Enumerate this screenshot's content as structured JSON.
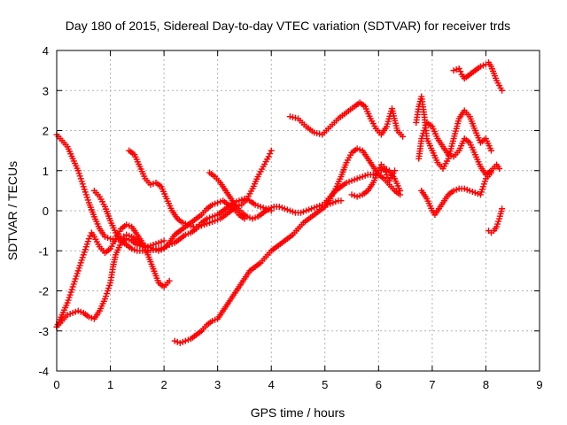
{
  "chart_data": {
    "type": "scatter",
    "title": "Day 180 of 2015, Sidereal Day-to-day VTEC variation (SDTVAR) for receiver trds",
    "xlabel": "GPS time / hours",
    "ylabel": "SDTVAR / TECUs",
    "xlim": [
      0,
      9
    ],
    "ylim": [
      -4,
      4
    ],
    "x_ticks": [
      "0",
      "1",
      "2",
      "3",
      "4",
      "5",
      "6",
      "7",
      "8",
      "9"
    ],
    "y_ticks": [
      "-4",
      "-3",
      "-2",
      "-1",
      "0",
      "1",
      "2",
      "3",
      "4"
    ],
    "grid": true,
    "marker": "plus",
    "color": "#ff0000",
    "series": [
      {
        "x": [
          0.0,
          0.1,
          0.2,
          0.3,
          0.4,
          0.5,
          0.6,
          0.7,
          0.8,
          0.9,
          1.0,
          1.1,
          1.2,
          1.3,
          1.4,
          1.5,
          1.6,
          1.7,
          1.8,
          1.9,
          2.0,
          2.1,
          2.2,
          2.3,
          2.4,
          2.5,
          2.6,
          2.7,
          2.8,
          2.9,
          3.0,
          3.1,
          3.2,
          3.3,
          3.4,
          3.5
        ],
        "y": [
          1.9,
          1.75,
          1.6,
          1.3,
          1.0,
          0.6,
          0.2,
          -0.15,
          -0.45,
          -0.65,
          -0.7,
          -0.72,
          -0.68,
          -0.6,
          -0.65,
          -0.75,
          -0.85,
          -0.9,
          -0.95,
          -1.0,
          -0.95,
          -0.8,
          -0.6,
          -0.5,
          -0.4,
          -0.3,
          -0.2,
          -0.1,
          0.05,
          0.15,
          0.2,
          0.25,
          0.15,
          0.05,
          -0.1,
          -0.2
        ]
      },
      {
        "x": [
          0.0,
          0.1,
          0.2,
          0.3,
          0.4,
          0.5,
          0.6,
          0.65,
          0.7,
          0.8,
          0.9,
          1.0,
          1.1,
          1.2,
          1.3,
          1.4,
          1.5,
          1.6,
          1.7,
          1.8,
          1.9,
          2.0,
          2.1
        ],
        "y": [
          -2.9,
          -2.6,
          -2.3,
          -1.9,
          -1.5,
          -1.1,
          -0.7,
          -0.55,
          -0.65,
          -0.9,
          -1.05,
          -0.95,
          -0.7,
          -0.45,
          -0.35,
          -0.4,
          -0.6,
          -0.8,
          -1.1,
          -1.45,
          -1.8,
          -1.9,
          -1.75
        ]
      },
      {
        "x": [
          0.0,
          0.1,
          0.2,
          0.3,
          0.4,
          0.5,
          0.6,
          0.7,
          0.8,
          0.9,
          1.0,
          1.05,
          1.1,
          1.2,
          1.3,
          1.4,
          1.5,
          1.6,
          1.7,
          1.8,
          1.9,
          2.0
        ],
        "y": [
          -2.9,
          -2.75,
          -2.6,
          -2.55,
          -2.5,
          -2.55,
          -2.65,
          -2.7,
          -2.5,
          -2.2,
          -1.8,
          -1.4,
          -1.1,
          -0.8,
          -0.7,
          -0.75,
          -0.85,
          -0.9,
          -0.9,
          -0.85,
          -0.8,
          -0.75
        ]
      },
      {
        "x": [
          0.7,
          0.8,
          0.9,
          1.0,
          1.1,
          1.2,
          1.3,
          1.4,
          1.5,
          1.6,
          1.7,
          1.8,
          1.9,
          2.0,
          2.1,
          2.2,
          2.3,
          2.4,
          2.5,
          2.6,
          2.7,
          2.8,
          2.9,
          3.0,
          3.1,
          3.2,
          3.3,
          3.4,
          3.5,
          3.6,
          3.7,
          3.8,
          3.9,
          4.0
        ],
        "y": [
          0.5,
          0.35,
          0.1,
          -0.25,
          -0.55,
          -0.75,
          -0.85,
          -0.95,
          -1.0,
          -1.0,
          -1.0,
          -0.98,
          -0.95,
          -0.92,
          -0.85,
          -0.8,
          -0.7,
          -0.6,
          -0.55,
          -0.45,
          -0.3,
          -0.2,
          -0.15,
          -0.1,
          0.0,
          0.1,
          0.2,
          0.25,
          0.3,
          0.25,
          0.15,
          0.1,
          0.05,
          0.0
        ]
      },
      {
        "x": [
          1.35,
          1.45,
          1.55,
          1.65,
          1.75,
          1.85,
          1.95,
          2.05,
          2.15,
          2.25,
          2.35,
          2.45,
          2.55,
          2.65,
          2.75,
          2.85,
          2.95,
          3.05,
          3.15,
          3.25,
          3.35,
          3.45,
          3.55,
          3.65,
          3.75,
          3.85,
          3.95,
          4.0
        ],
        "y": [
          1.5,
          1.4,
          1.1,
          0.8,
          0.65,
          0.7,
          0.6,
          0.3,
          0.0,
          -0.2,
          -0.3,
          -0.35,
          -0.4,
          -0.4,
          -0.35,
          -0.3,
          -0.25,
          -0.2,
          -0.1,
          0.0,
          0.1,
          0.15,
          0.3,
          0.55,
          0.85,
          1.1,
          1.35,
          1.5
        ]
      },
      {
        "x": [
          2.2,
          2.3,
          2.4,
          2.5,
          2.6,
          2.7,
          2.8,
          2.9,
          3.0,
          3.1,
          3.2,
          3.3,
          3.4,
          3.5,
          3.6,
          3.7,
          3.8,
          3.9,
          4.0,
          4.1,
          4.2,
          4.3,
          4.4,
          4.5,
          4.6,
          4.7,
          4.8,
          4.9,
          5.0,
          5.1,
          5.2,
          5.3,
          5.4,
          5.5,
          5.6,
          5.7,
          5.8,
          5.9,
          6.0,
          6.1,
          6.2,
          6.3,
          6.4
        ],
        "y": [
          -3.25,
          -3.3,
          -3.25,
          -3.2,
          -3.1,
          -3.0,
          -2.85,
          -2.75,
          -2.7,
          -2.5,
          -2.3,
          -2.1,
          -1.9,
          -1.7,
          -1.5,
          -1.4,
          -1.3,
          -1.15,
          -1.0,
          -0.9,
          -0.8,
          -0.7,
          -0.6,
          -0.45,
          -0.3,
          -0.2,
          -0.1,
          0.0,
          0.1,
          0.3,
          0.55,
          0.85,
          1.2,
          1.45,
          1.55,
          1.5,
          1.3,
          1.1,
          0.9,
          0.8,
          0.65,
          0.5,
          0.4
        ]
      },
      {
        "x": [
          2.85,
          2.95,
          3.05,
          3.15,
          3.25,
          3.35,
          3.45,
          3.55,
          3.65,
          3.75,
          3.85,
          3.95,
          4.05,
          4.15,
          4.25,
          4.35,
          4.45,
          4.55,
          4.65,
          4.75,
          4.85,
          4.95,
          5.05,
          5.15,
          5.25,
          5.3
        ],
        "y": [
          0.95,
          0.85,
          0.7,
          0.5,
          0.3,
          0.1,
          -0.05,
          -0.15,
          -0.2,
          -0.15,
          -0.05,
          0.05,
          0.1,
          0.1,
          0.05,
          0.0,
          -0.05,
          -0.05,
          0.0,
          0.05,
          0.1,
          0.15,
          0.15,
          0.2,
          0.25,
          0.25
        ]
      },
      {
        "x": [
          4.35,
          4.5,
          4.65,
          4.8,
          4.95,
          5.1,
          5.25,
          5.4,
          5.55,
          5.65,
          5.75,
          5.85,
          5.95,
          6.05,
          6.15,
          6.25,
          6.35,
          6.45
        ],
        "y": [
          2.35,
          2.3,
          2.1,
          1.95,
          1.9,
          2.1,
          2.3,
          2.45,
          2.6,
          2.7,
          2.6,
          2.3,
          2.05,
          1.9,
          2.1,
          2.55,
          2.0,
          1.85
        ]
      },
      {
        "x": [
          5.0,
          5.1,
          5.2,
          5.3,
          5.4,
          5.5,
          5.6,
          5.7,
          5.8,
          5.9,
          6.0,
          6.05,
          6.1,
          6.2,
          6.3,
          6.4
        ],
        "y": [
          0.2,
          0.35,
          0.5,
          0.6,
          0.7,
          0.75,
          0.8,
          0.85,
          0.9,
          0.9,
          0.95,
          1.0,
          1.05,
          1.0,
          0.8,
          0.5
        ]
      },
      {
        "x": [
          5.5,
          5.6,
          5.7,
          5.8,
          5.9,
          6.0,
          6.05,
          6.1,
          6.15,
          6.2,
          6.3
        ],
        "y": [
          0.4,
          0.35,
          0.4,
          0.5,
          0.7,
          1.0,
          1.15,
          1.1,
          0.9,
          0.75,
          1.0
        ]
      },
      {
        "x": [
          6.7,
          6.75,
          6.8,
          6.85,
          6.9,
          7.0,
          7.1,
          7.2,
          7.3,
          7.4,
          7.5,
          7.6,
          7.7,
          7.8,
          7.9,
          8.0,
          8.1
        ],
        "y": [
          2.2,
          2.6,
          2.85,
          2.4,
          1.8,
          1.5,
          1.2,
          1.05,
          1.3,
          1.8,
          2.3,
          2.5,
          2.35,
          2.0,
          1.7,
          1.8,
          1.5
        ]
      },
      {
        "x": [
          6.75,
          6.8,
          6.9,
          7.0,
          7.1,
          7.2,
          7.3,
          7.4,
          7.5,
          7.6,
          7.7,
          7.8,
          7.9,
          8.0,
          8.1,
          8.2,
          8.25
        ],
        "y": [
          1.3,
          1.8,
          2.2,
          2.1,
          1.8,
          1.6,
          1.4,
          1.35,
          1.5,
          1.8,
          1.7,
          1.4,
          1.1,
          0.9,
          1.0,
          1.15,
          1.05
        ]
      },
      {
        "x": [
          6.8,
          6.9,
          7.0,
          7.05,
          7.1,
          7.2,
          7.3,
          7.4,
          7.5,
          7.6,
          7.7,
          7.8,
          7.9,
          8.0,
          8.1
        ],
        "y": [
          0.5,
          0.3,
          0.0,
          -0.1,
          0.0,
          0.2,
          0.4,
          0.5,
          0.55,
          0.55,
          0.5,
          0.45,
          0.4,
          0.8,
          0.95
        ]
      },
      {
        "x": [
          7.4,
          7.5,
          7.55,
          7.6,
          7.7,
          7.8,
          7.9,
          8.0,
          8.05,
          8.1,
          8.2,
          8.3
        ],
        "y": [
          3.5,
          3.55,
          3.4,
          3.3,
          3.4,
          3.5,
          3.6,
          3.65,
          3.7,
          3.6,
          3.25,
          3.0
        ]
      },
      {
        "x": [
          8.05,
          8.1,
          8.15,
          8.2,
          8.25,
          8.3
        ],
        "y": [
          -0.5,
          -0.55,
          -0.5,
          -0.4,
          -0.2,
          0.05
        ]
      }
    ]
  }
}
